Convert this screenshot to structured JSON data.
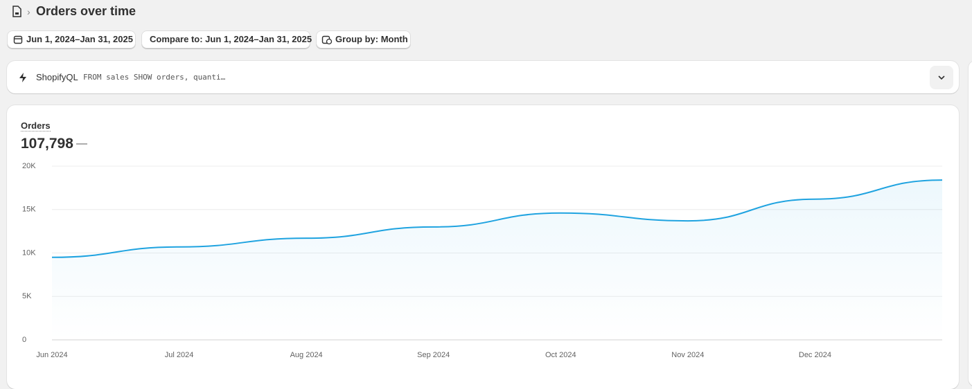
{
  "header": {
    "title": "Orders over time"
  },
  "buttons": [
    "Jun 1, 2024–Jan 31, 2025",
    "Compare to: Jun 1, 2024–Jan 31, 2025",
    "Group by: Month"
  ],
  "query": {
    "label": "ShopifyQL",
    "text": "FROM sales SHOW orders, quanti…"
  },
  "chart_data": {
    "type": "line",
    "title": "Orders",
    "summary": "107,798",
    "comparison": "—",
    "categories": [
      "Jun 2024",
      "Jul 2024",
      "Aug 2024",
      "Sep 2024",
      "Oct 2024",
      "Nov 2024",
      "Dec 2024",
      null
    ],
    "series": [
      {
        "name": "Orders",
        "color": "#1fa3e0",
        "values": [
          9500,
          10700,
          11700,
          13000,
          14600,
          13700,
          16200,
          18400
        ]
      }
    ],
    "ylim": [
      0,
      20000
    ],
    "yticks": [
      0,
      {
        "value": 5000,
        "label": "5K"
      },
      {
        "value": 10000,
        "label": "10K"
      },
      {
        "value": 15000,
        "label": "15K"
      },
      {
        "value": 20000,
        "label": "20K"
      }
    ],
    "grid": true
  }
}
